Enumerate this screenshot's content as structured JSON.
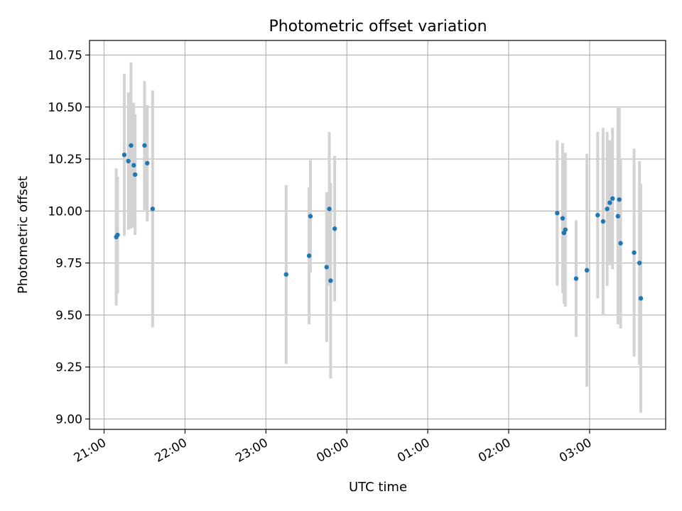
{
  "chart_data": {
    "type": "scatter",
    "title": "Photometric offset variation",
    "xlabel": "UTC time",
    "ylabel": "Photometric offset",
    "grid": true,
    "legend": "none",
    "x_ticks": [
      "21:00",
      "22:00",
      "23:00",
      "00:00",
      "01:00",
      "02:00",
      "03:00"
    ],
    "x_tick_hours": [
      21,
      22,
      23,
      24,
      25,
      26,
      27
    ],
    "xlim_hours": [
      20.82,
      27.94
    ],
    "y_ticks": [
      9.0,
      9.25,
      9.5,
      9.75,
      10.0,
      10.25,
      10.5,
      10.75
    ],
    "y_tick_labels": [
      "9.00",
      "9.25",
      "9.50",
      "9.75",
      "10.00",
      "10.25",
      "10.50",
      "10.75"
    ],
    "ylim": [
      8.95,
      10.82
    ],
    "colors": {
      "point": "#1f77b4",
      "errorbar": "#d3d3d3",
      "grid": "#b0b0b0"
    },
    "series": [
      {
        "points": [
          {
            "t": "21:09",
            "y": 9.875,
            "err": 0.33
          },
          {
            "t": "21:10",
            "y": 9.885,
            "err": 0.28
          },
          {
            "t": "21:15",
            "y": 10.27,
            "err": 0.39
          },
          {
            "t": "21:18",
            "y": 10.24,
            "err": 0.33
          },
          {
            "t": "21:20",
            "y": 10.315,
            "err": 0.4
          },
          {
            "t": "21:22",
            "y": 10.22,
            "err": 0.3
          },
          {
            "t": "21:23",
            "y": 10.175,
            "err": 0.29
          },
          {
            "t": "21:30",
            "y": 10.315,
            "err": 0.31
          },
          {
            "t": "21:32",
            "y": 10.23,
            "err": 0.28
          },
          {
            "t": "21:36",
            "y": 10.01,
            "err": 0.57
          },
          {
            "t": "23:15",
            "y": 9.695,
            "err": 0.43
          },
          {
            "t": "23:32",
            "y": 9.785,
            "err": 0.33
          },
          {
            "t": "23:33",
            "y": 9.975,
            "err": 0.27
          },
          {
            "t": "23:45",
            "y": 9.73,
            "err": 0.36
          },
          {
            "t": "23:47",
            "y": 10.01,
            "err": 0.37
          },
          {
            "t": "23:48",
            "y": 9.665,
            "err": 0.47
          },
          {
            "t": "23:51",
            "y": 9.915,
            "err": 0.35
          },
          {
            "t": "02:36",
            "y": 9.99,
            "err": 0.35
          },
          {
            "t": "02:40",
            "y": 9.965,
            "err": 0.36
          },
          {
            "t": "02:41",
            "y": 9.895,
            "err": 0.34
          },
          {
            "t": "02:42",
            "y": 9.91,
            "err": 0.37
          },
          {
            "t": "02:50",
            "y": 9.675,
            "err": 0.28
          },
          {
            "t": "02:58",
            "y": 9.715,
            "err": 0.56
          },
          {
            "t": "03:06",
            "y": 9.98,
            "err": 0.4
          },
          {
            "t": "03:10",
            "y": 9.95,
            "err": 0.45
          },
          {
            "t": "03:13",
            "y": 10.01,
            "err": 0.37
          },
          {
            "t": "03:15",
            "y": 10.04,
            "err": 0.3
          },
          {
            "t": "03:17",
            "y": 10.06,
            "err": 0.34
          },
          {
            "t": "03:21",
            "y": 9.975,
            "err": 0.52
          },
          {
            "t": "03:22",
            "y": 10.055,
            "err": 0.44
          },
          {
            "t": "03:23",
            "y": 9.845,
            "err": 0.41
          },
          {
            "t": "03:33",
            "y": 9.8,
            "err": 0.5
          },
          {
            "t": "03:37",
            "y": 9.75,
            "err": 0.49
          },
          {
            "t": "03:38",
            "y": 9.58,
            "err": 0.55
          }
        ]
      }
    ]
  }
}
